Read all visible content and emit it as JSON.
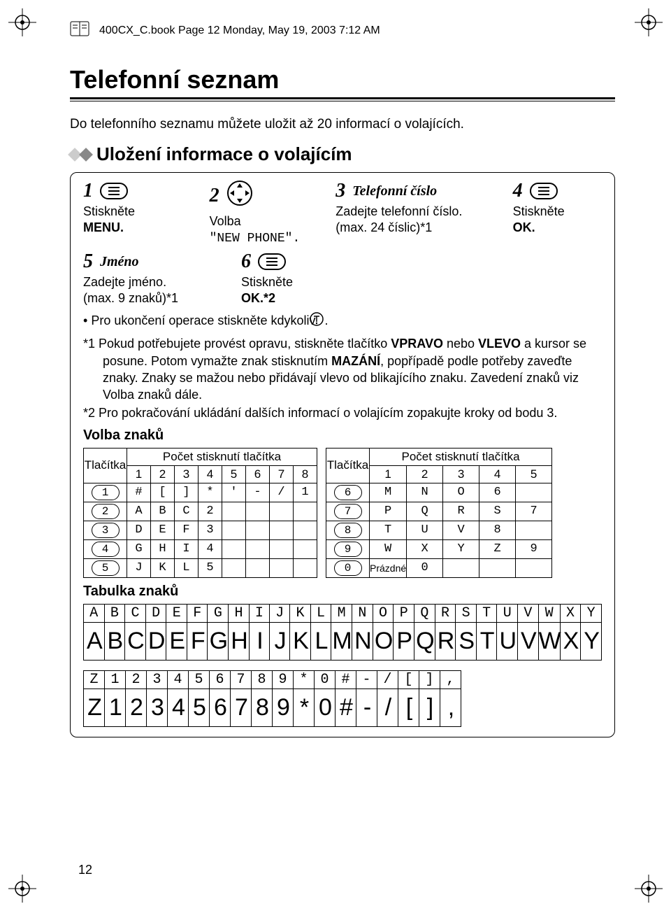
{
  "cropMarkColor": "#000000",
  "header": {
    "text": "400CX_C.book  Page 12  Monday, May 19, 2003  7:12 AM"
  },
  "title": "Telefonní seznam",
  "intro": "Do telefonního seznamu můžete uložit až 20 informací o volajících.",
  "section": "Uložení informace o volajícím",
  "steps": {
    "s1": {
      "num": "1",
      "line1": "Stiskněte",
      "line2": "MENU."
    },
    "s2": {
      "num": "2",
      "line1": "Volba",
      "line2": "\"NEW PHONE\"."
    },
    "s3": {
      "num": "3",
      "label": "Telefonní číslo",
      "line1": "Zadejte telefonní číslo.",
      "line2": "(max. 24 číslic)*1"
    },
    "s4": {
      "num": "4",
      "line1": "Stiskněte",
      "line2": "OK."
    },
    "s5": {
      "num": "5",
      "label": "Jméno",
      "line1": "Zadejte jméno.",
      "line2": "(max. 9 znaků)*1"
    },
    "s6": {
      "num": "6",
      "line1": "Stiskněte",
      "line2": "OK.*2"
    }
  },
  "bullet": "Pro ukončení operace stiskněte kdykoliv ",
  "bulletTail": ".",
  "note1a": "*1 Pokud potřebujete provést opravu, stiskněte tlačítko ",
  "note1b": "VPRAVO",
  "note1c": " nebo ",
  "note1d": "VLEVO",
  "note1e": " a kursor se posune. Potom vymažte znak stisknutím ",
  "note1f": "MAZÁNÍ",
  "note1g": ", popřípadě podle potřeby zaveďte znaky. Znaky se mažou nebo přidávají vlevo od blikajícího znaku. Zavedení znaků viz Volba znaků dále.",
  "note2": "*2 Pro pokračování ukládání dalších informací o volajícím zopakujte kroky od bodu 3.",
  "volba": "Volba znaků",
  "pressHeader": "Počet stisknutí tlačítka",
  "btnHeader": "Tlačítka",
  "left": {
    "cols": [
      "1",
      "2",
      "3",
      "4",
      "5",
      "6",
      "7",
      "8"
    ],
    "rows": [
      {
        "key": "1",
        "cells": [
          "#",
          "[",
          "]",
          "*",
          "'",
          "-",
          "/",
          "1"
        ]
      },
      {
        "key": "2",
        "cells": [
          "A",
          "B",
          "C",
          "2",
          "",
          "",
          "",
          ""
        ]
      },
      {
        "key": "3",
        "cells": [
          "D",
          "E",
          "F",
          "3",
          "",
          "",
          "",
          ""
        ]
      },
      {
        "key": "4",
        "cells": [
          "G",
          "H",
          "I",
          "4",
          "",
          "",
          "",
          ""
        ]
      },
      {
        "key": "5",
        "cells": [
          "J",
          "K",
          "L",
          "5",
          "",
          "",
          "",
          ""
        ]
      }
    ]
  },
  "right": {
    "cols": [
      "1",
      "2",
      "3",
      "4",
      "5"
    ],
    "rows": [
      {
        "key": "6",
        "cells": [
          "M",
          "N",
          "O",
          "6",
          ""
        ]
      },
      {
        "key": "7",
        "cells": [
          "P",
          "Q",
          "R",
          "S",
          "7"
        ]
      },
      {
        "key": "8",
        "cells": [
          "T",
          "U",
          "V",
          "8",
          ""
        ]
      },
      {
        "key": "9",
        "cells": [
          "W",
          "X",
          "Y",
          "Z",
          "9"
        ]
      },
      {
        "key": "0",
        "cells": [
          "Prázdné",
          "0",
          "",
          "",
          ""
        ]
      }
    ]
  },
  "tabulka": "Tabulka znaků",
  "glyphRow1": [
    "A",
    "B",
    "C",
    "D",
    "E",
    "F",
    "G",
    "H",
    "I",
    "J",
    "K",
    "L",
    "M",
    "N",
    "O",
    "P",
    "Q",
    "R",
    "S",
    "T",
    "U",
    "V",
    "W",
    "X",
    "Y"
  ],
  "glyphRow2": [
    "Z",
    "1",
    "2",
    "3",
    "4",
    "5",
    "6",
    "7",
    "8",
    "9",
    "*",
    "0",
    "#",
    "-",
    "/",
    "[",
    "]",
    ","
  ],
  "pageNum": "12"
}
